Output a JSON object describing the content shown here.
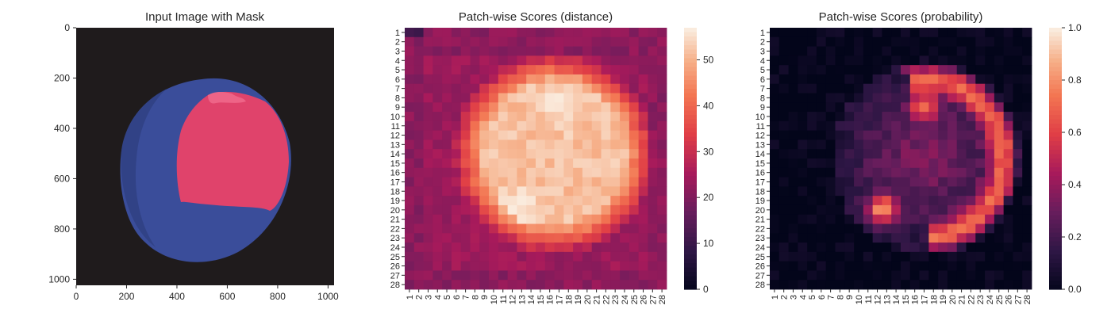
{
  "chart_data": [
    {
      "type": "image",
      "title": "Input Image with Mask",
      "xlim": [
        0,
        1024
      ],
      "ylim": [
        1024,
        0
      ],
      "xticks": [
        0,
        200,
        400,
        600,
        800,
        1000
      ],
      "yticks": [
        0,
        200,
        400,
        600,
        800,
        1000
      ],
      "background_color": "#1f1b1c",
      "object_color": "#3a4d9a",
      "mask_color": "#e0436b"
    },
    {
      "type": "heatmap",
      "title": "Patch-wise Scores (distance)",
      "rows": 28,
      "cols": 28,
      "xticklabels": [
        "1",
        "2",
        "3",
        "4",
        "5",
        "6",
        "7",
        "8",
        "9",
        "10",
        "11",
        "12",
        "13",
        "14",
        "15",
        "16",
        "17",
        "18",
        "19",
        "20",
        "21",
        "22",
        "23",
        "24",
        "25",
        "26",
        "27",
        "28"
      ],
      "yticklabels": [
        "1",
        "2",
        "3",
        "4",
        "5",
        "6",
        "7",
        "8",
        "9",
        "10",
        "11",
        "12",
        "13",
        "14",
        "15",
        "16",
        "17",
        "18",
        "19",
        "20",
        "21",
        "22",
        "23",
        "24",
        "25",
        "26",
        "27",
        "28"
      ],
      "colorbar": {
        "min": 0,
        "max": 57,
        "ticks": [
          0,
          10,
          20,
          30,
          40,
          50
        ]
      },
      "colormap": "rocket",
      "description_of_values": "low (~20-30) at border, high (~50-57) disc centered near row 14, col 16 with peaks near rows 8-9 cols 17-19 and rows 19-21 cols 11-14"
    },
    {
      "type": "heatmap",
      "title": "Patch-wise Scores (probability)",
      "rows": 28,
      "cols": 28,
      "xticklabels": [
        "1",
        "2",
        "3",
        "4",
        "5",
        "6",
        "7",
        "8",
        "9",
        "10",
        "11",
        "12",
        "13",
        "14",
        "15",
        "16",
        "17",
        "18",
        "19",
        "20",
        "21",
        "22",
        "23",
        "24",
        "25",
        "26",
        "27",
        "28"
      ],
      "yticklabels": [
        "1",
        "2",
        "3",
        "4",
        "5",
        "6",
        "7",
        "8",
        "9",
        "10",
        "11",
        "12",
        "13",
        "14",
        "15",
        "16",
        "17",
        "18",
        "19",
        "20",
        "21",
        "22",
        "23",
        "24",
        "25",
        "26",
        "27",
        "28"
      ],
      "colorbar": {
        "min": 0.0,
        "max": 1.0,
        "ticks": [
          "0.0",
          "0.2",
          "0.4",
          "0.6",
          "0.8",
          "1.0"
        ]
      },
      "colormap": "rocket"
    }
  ]
}
